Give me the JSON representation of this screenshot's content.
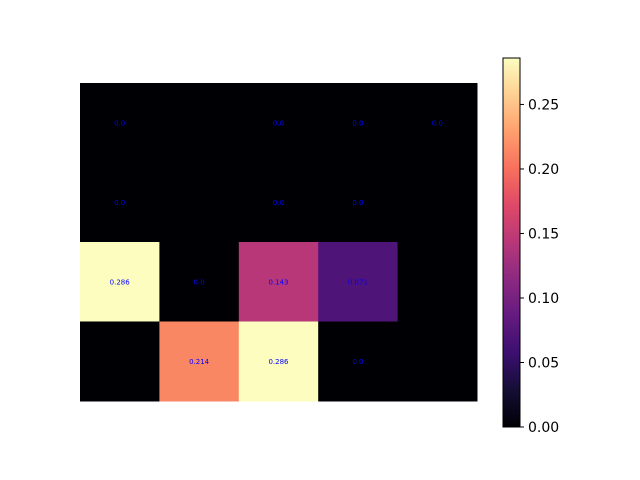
{
  "chart_data": {
    "type": "heatmap",
    "title": "",
    "xlabel": "",
    "ylabel": "",
    "rows": 4,
    "cols": 5,
    "values": [
      [
        0.0,
        0.0,
        0.0,
        0.0,
        0.0
      ],
      [
        0.0,
        0.0,
        0.0,
        0.0,
        0.0
      ],
      [
        0.286,
        0.0,
        0.143,
        0.071,
        0.0
      ],
      [
        0.0,
        0.214,
        0.286,
        0.0,
        0.0
      ]
    ],
    "cell_labels": [
      [
        "0.0",
        "",
        "0.0",
        "0.0",
        "0.0"
      ],
      [
        "0.0",
        "",
        "0.0",
        "0.0",
        ""
      ],
      [
        "0.286",
        "0.0",
        "0.143",
        "0.071",
        ""
      ],
      [
        "",
        "0.214",
        "0.286",
        "0.0",
        ""
      ]
    ],
    "label_color": "#0000ff",
    "colormap": "magma",
    "vmin": 0.0,
    "vmax": 0.286,
    "colorbar": {
      "ticks": [
        0.0,
        0.05,
        0.1,
        0.15,
        0.2,
        0.25
      ],
      "tick_labels": [
        "0.00",
        "0.05",
        "0.10",
        "0.15",
        "0.20",
        "0.25"
      ]
    },
    "grid": false,
    "axes_visible": false
  }
}
